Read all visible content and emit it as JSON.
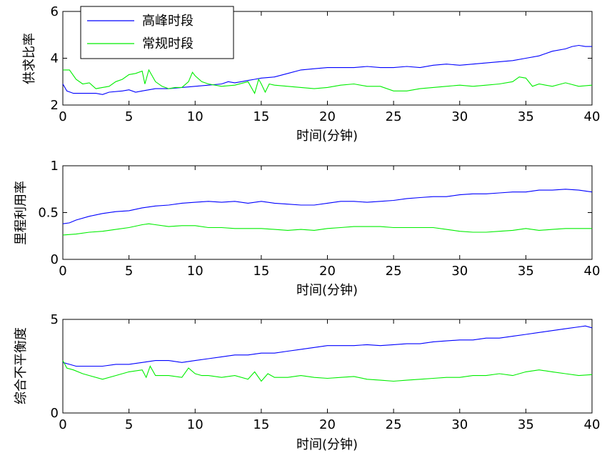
{
  "chart_data": [
    {
      "type": "line",
      "ylabel": "供求比率",
      "xlabel": "",
      "xlim": [
        0,
        40
      ],
      "ylim": [
        2,
        6
      ],
      "xticks": [
        0,
        5,
        10,
        15,
        20,
        25,
        30,
        35,
        40
      ],
      "yticks": [
        2,
        4,
        6
      ],
      "legend": {
        "placement": "top-left",
        "entries": [
          "高峰时段",
          "常规时段"
        ]
      },
      "series": [
        {
          "name": "高峰时段",
          "color": "#0000ff",
          "x": [
            0,
            0.3,
            0.8,
            1.5,
            2.5,
            3,
            3.5,
            4.5,
            5,
            5.5,
            6,
            6.5,
            7,
            8,
            9,
            10,
            11,
            12,
            12.5,
            13,
            13.5,
            14,
            14.5,
            15,
            16,
            17,
            18,
            19,
            20,
            21,
            22,
            23,
            24,
            25,
            26,
            27,
            28,
            29,
            30,
            31,
            32,
            33,
            34,
            35,
            36,
            37,
            38,
            38.5,
            39,
            39.5,
            40
          ],
          "y": [
            2.9,
            2.6,
            2.5,
            2.5,
            2.5,
            2.45,
            2.55,
            2.6,
            2.65,
            2.55,
            2.6,
            2.65,
            2.7,
            2.7,
            2.75,
            2.8,
            2.85,
            2.9,
            3.0,
            2.95,
            3.0,
            3.05,
            3.1,
            3.15,
            3.2,
            3.35,
            3.5,
            3.55,
            3.6,
            3.6,
            3.6,
            3.65,
            3.6,
            3.6,
            3.65,
            3.6,
            3.7,
            3.75,
            3.7,
            3.75,
            3.8,
            3.85,
            3.9,
            4.0,
            4.1,
            4.3,
            4.4,
            4.5,
            4.55,
            4.5,
            4.5
          ]
        },
        {
          "name": "常规时段",
          "color": "#00ee00",
          "x": [
            0,
            0.5,
            1,
            1.5,
            2,
            2.5,
            3,
            3.5,
            4,
            4.5,
            5,
            5.5,
            6,
            6.2,
            6.5,
            7,
            7.5,
            8,
            8.5,
            9,
            9.5,
            9.8,
            10,
            10.5,
            11,
            12,
            13,
            14,
            14.5,
            14.8,
            15,
            15.3,
            15.6,
            16,
            17,
            18,
            19,
            20,
            21,
            22,
            23,
            24,
            25,
            26,
            27,
            28,
            29,
            30,
            31,
            32,
            33,
            34,
            34.5,
            35,
            35.5,
            36,
            37,
            38,
            39,
            40
          ],
          "y": [
            3.5,
            3.5,
            3.1,
            2.9,
            2.95,
            2.7,
            2.75,
            2.8,
            3.0,
            3.1,
            3.3,
            3.35,
            3.45,
            2.9,
            3.5,
            3.0,
            2.8,
            2.7,
            2.75,
            2.75,
            3.0,
            3.4,
            3.25,
            3.0,
            2.9,
            2.8,
            2.85,
            3.0,
            2.5,
            3.1,
            2.9,
            2.55,
            2.9,
            2.85,
            2.8,
            2.75,
            2.7,
            2.75,
            2.85,
            2.9,
            2.8,
            2.8,
            2.6,
            2.6,
            2.7,
            2.75,
            2.8,
            2.85,
            2.8,
            2.85,
            2.9,
            3.0,
            3.2,
            3.15,
            2.8,
            2.9,
            2.8,
            2.95,
            2.8,
            2.85
          ]
        }
      ]
    },
    {
      "type": "line",
      "ylabel": "里程利用率",
      "xlabel": "",
      "xlim": [
        0,
        40
      ],
      "ylim": [
        0,
        1
      ],
      "xticks": [
        0,
        5,
        10,
        15,
        20,
        25,
        30,
        35,
        40
      ],
      "yticks": [
        0,
        0.5,
        1
      ],
      "series": [
        {
          "color": "#0000ff",
          "x": [
            0,
            0.5,
            1,
            2,
            3,
            4,
            5,
            6,
            7,
            8,
            9,
            10,
            11,
            12,
            13,
            14,
            15,
            16,
            17,
            18,
            19,
            20,
            21,
            22,
            23,
            24,
            25,
            26,
            27,
            28,
            29,
            30,
            31,
            32,
            33,
            34,
            35,
            36,
            37,
            38,
            39,
            40
          ],
          "y": [
            0.38,
            0.39,
            0.42,
            0.46,
            0.49,
            0.51,
            0.52,
            0.55,
            0.57,
            0.58,
            0.6,
            0.61,
            0.62,
            0.61,
            0.62,
            0.6,
            0.62,
            0.6,
            0.59,
            0.58,
            0.58,
            0.6,
            0.62,
            0.62,
            0.61,
            0.62,
            0.63,
            0.65,
            0.66,
            0.67,
            0.67,
            0.69,
            0.7,
            0.7,
            0.71,
            0.72,
            0.72,
            0.74,
            0.74,
            0.75,
            0.74,
            0.72
          ]
        },
        {
          "color": "#00ee00",
          "x": [
            0,
            1,
            2,
            3,
            4,
            5,
            6,
            6.5,
            7,
            8,
            9,
            10,
            11,
            12,
            13,
            14,
            15,
            16,
            17,
            18,
            19,
            20,
            21,
            22,
            23,
            24,
            25,
            26,
            27,
            28,
            29,
            30,
            31,
            32,
            33,
            34,
            35,
            36,
            37,
            38,
            39,
            40
          ],
          "y": [
            0.26,
            0.27,
            0.29,
            0.3,
            0.32,
            0.34,
            0.37,
            0.38,
            0.37,
            0.35,
            0.36,
            0.36,
            0.34,
            0.34,
            0.33,
            0.33,
            0.33,
            0.32,
            0.31,
            0.32,
            0.31,
            0.33,
            0.34,
            0.35,
            0.35,
            0.35,
            0.34,
            0.34,
            0.34,
            0.34,
            0.32,
            0.3,
            0.29,
            0.29,
            0.3,
            0.31,
            0.33,
            0.31,
            0.32,
            0.33,
            0.33,
            0.33
          ]
        }
      ]
    },
    {
      "type": "line",
      "ylabel": "综合不平衡度",
      "xlabel": "",
      "xlim": [
        0,
        40
      ],
      "ylim": [
        0,
        5
      ],
      "xticks": [
        0,
        5,
        10,
        15,
        20,
        25,
        30,
        35,
        40
      ],
      "yticks": [
        0,
        5
      ],
      "series": [
        {
          "color": "#0000ff",
          "x": [
            0,
            0.5,
            1,
            2,
            3,
            4,
            5,
            6,
            7,
            8,
            9,
            10,
            11,
            12,
            13,
            14,
            15,
            16,
            17,
            18,
            19,
            20,
            21,
            22,
            23,
            24,
            25,
            26,
            27,
            28,
            29,
            30,
            31,
            32,
            33,
            34,
            35,
            36,
            37,
            38,
            39,
            39.5,
            40
          ],
          "y": [
            2.7,
            2.6,
            2.5,
            2.5,
            2.5,
            2.6,
            2.6,
            2.7,
            2.8,
            2.8,
            2.7,
            2.8,
            2.9,
            3.0,
            3.1,
            3.1,
            3.2,
            3.2,
            3.3,
            3.4,
            3.5,
            3.6,
            3.6,
            3.6,
            3.65,
            3.6,
            3.65,
            3.7,
            3.7,
            3.8,
            3.85,
            3.9,
            3.9,
            4.0,
            4.0,
            4.1,
            4.2,
            4.3,
            4.4,
            4.5,
            4.6,
            4.65,
            4.55
          ]
        },
        {
          "color": "#00ee00",
          "x": [
            0,
            0.3,
            0.8,
            1.5,
            2,
            3,
            4,
            5,
            6,
            6.3,
            6.6,
            7,
            8,
            9,
            9.5,
            10,
            10.5,
            11,
            12,
            13,
            14,
            14.5,
            15,
            15.5,
            16,
            17,
            18,
            19,
            20,
            21,
            22,
            23,
            24,
            25,
            26,
            27,
            28,
            29,
            30,
            31,
            32,
            33,
            34,
            35,
            36,
            37,
            38,
            39,
            40
          ],
          "y": [
            2.8,
            2.4,
            2.3,
            2.1,
            2.0,
            1.8,
            2.0,
            2.2,
            2.3,
            1.9,
            2.5,
            2.0,
            2.0,
            1.9,
            2.4,
            2.1,
            2.0,
            2.0,
            1.9,
            2.0,
            1.8,
            2.2,
            1.7,
            2.1,
            1.9,
            1.9,
            2.0,
            1.9,
            1.85,
            1.9,
            1.95,
            1.8,
            1.75,
            1.7,
            1.75,
            1.8,
            1.85,
            1.9,
            1.9,
            2.0,
            2.0,
            2.1,
            2.0,
            2.2,
            2.3,
            2.2,
            2.1,
            2.0,
            2.05
          ]
        }
      ]
    }
  ],
  "ui": {
    "xlabels": [
      "时间(分钟)",
      "时间(分钟)",
      "时间(分钟)"
    ]
  }
}
